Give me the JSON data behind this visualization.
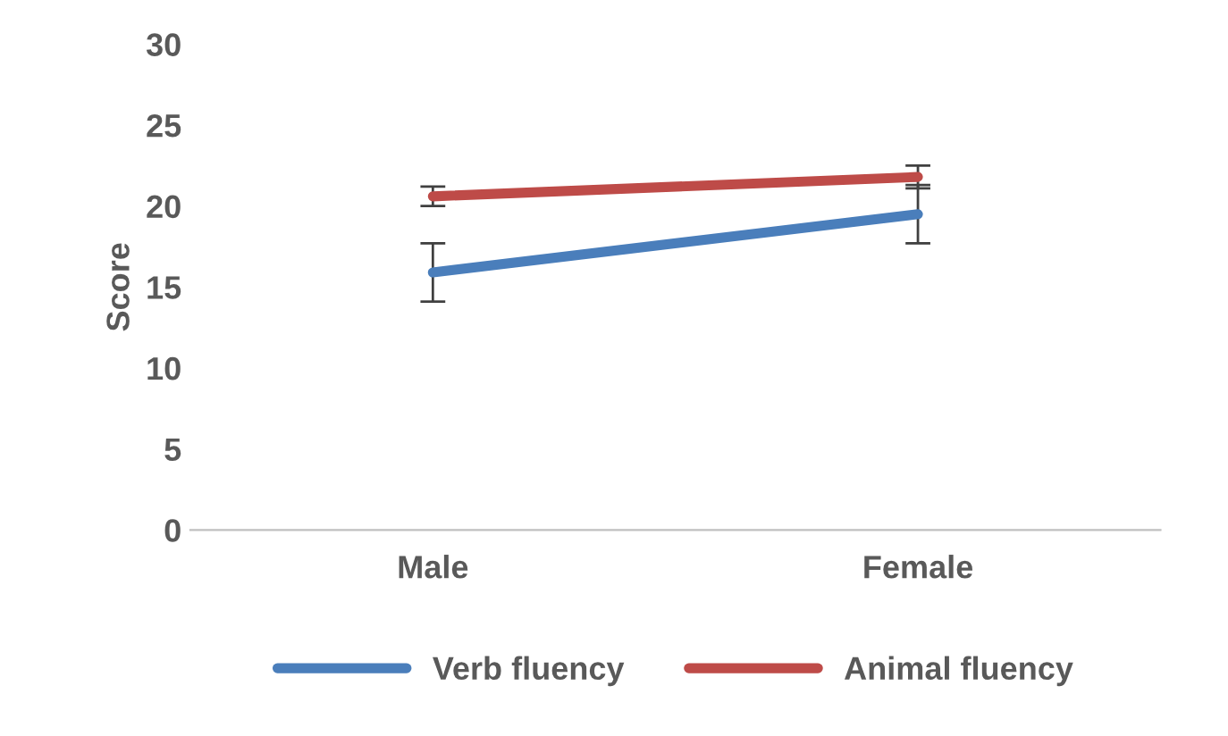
{
  "chart_data": {
    "type": "line",
    "ylabel": "Score",
    "categories": [
      "Male",
      "Female"
    ],
    "series": [
      {
        "name": "Verb fluency",
        "color": "#4a7ebb",
        "values": [
          15.9,
          19.5
        ],
        "errors": [
          1.8,
          1.8
        ]
      },
      {
        "name": "Animal fluency",
        "color": "#be4b48",
        "values": [
          20.6,
          21.8
        ],
        "errors": [
          0.6,
          0.7
        ]
      }
    ],
    "ylim": [
      0,
      30
    ],
    "yticks": [
      0,
      5,
      10,
      15,
      20,
      25,
      30
    ],
    "grid": false,
    "legend": "bottom",
    "marker": "none",
    "line_style": "solid"
  }
}
